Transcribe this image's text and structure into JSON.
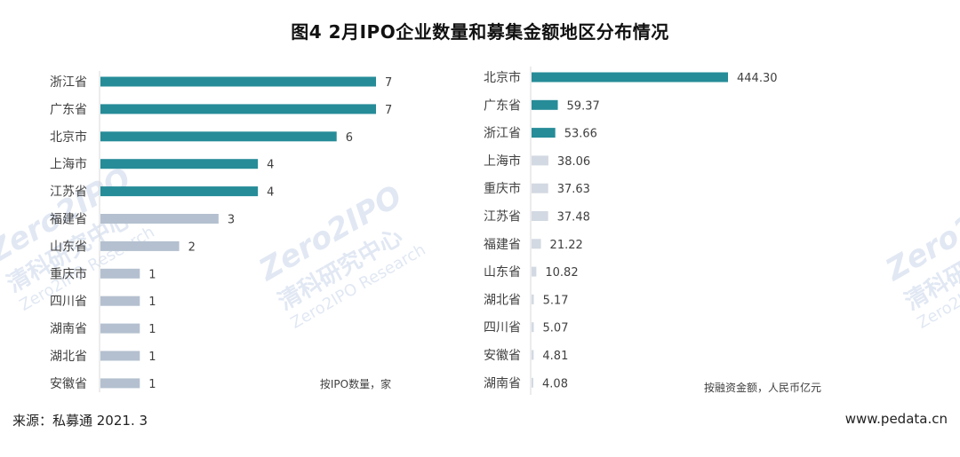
{
  "title": "图4  2月IPO企业数量和募集金额地区分布情况",
  "footer": {
    "source": "来源：私募通  2021. 3",
    "website": "www.pedata.cn"
  },
  "watermark": {
    "logo": "Zero2IPO",
    "cn": "清科研究中心",
    "en": "Zero2IPO Research"
  },
  "colors": {
    "highlight": "#268c98",
    "other_left": "#b4c0cf",
    "other_right": "#d3d9e2",
    "axis": "#d9d9d9"
  },
  "chart_data": [
    {
      "type": "bar",
      "orientation": "horizontal",
      "note": "按IPO数量，家",
      "categories": [
        "浙江省",
        "广东省",
        "北京市",
        "上海市",
        "江苏省",
        "福建省",
        "山东省",
        "重庆市",
        "四川省",
        "湖南省",
        "湖北省",
        "安徽省"
      ],
      "values": [
        7,
        7,
        6,
        4,
        4,
        3,
        2,
        1,
        1,
        1,
        1,
        1
      ],
      "labels": [
        "7",
        "7",
        "6",
        "4",
        "4",
        "3",
        "2",
        "1",
        "1",
        "1",
        "1",
        "1"
      ],
      "highlight_count": 5,
      "xlim": [
        0,
        7
      ]
    },
    {
      "type": "bar",
      "orientation": "horizontal",
      "note": "按融资金额，人民币亿元",
      "categories": [
        "北京市",
        "广东省",
        "浙江省",
        "上海市",
        "重庆市",
        "江苏省",
        "福建省",
        "山东省",
        "湖北省",
        "四川省",
        "安徽省",
        "湖南省"
      ],
      "values": [
        444.3,
        59.37,
        53.66,
        38.06,
        37.63,
        37.48,
        21.22,
        10.82,
        5.17,
        5.07,
        4.81,
        4.08
      ],
      "labels": [
        "444.30",
        "59.37",
        "53.66",
        "38.06",
        "37.63",
        "37.48",
        "21.22",
        "10.82",
        "5.17",
        "5.07",
        "4.81",
        "4.08"
      ],
      "highlight_count": 3,
      "xlim": [
        0,
        444.3
      ]
    }
  ]
}
